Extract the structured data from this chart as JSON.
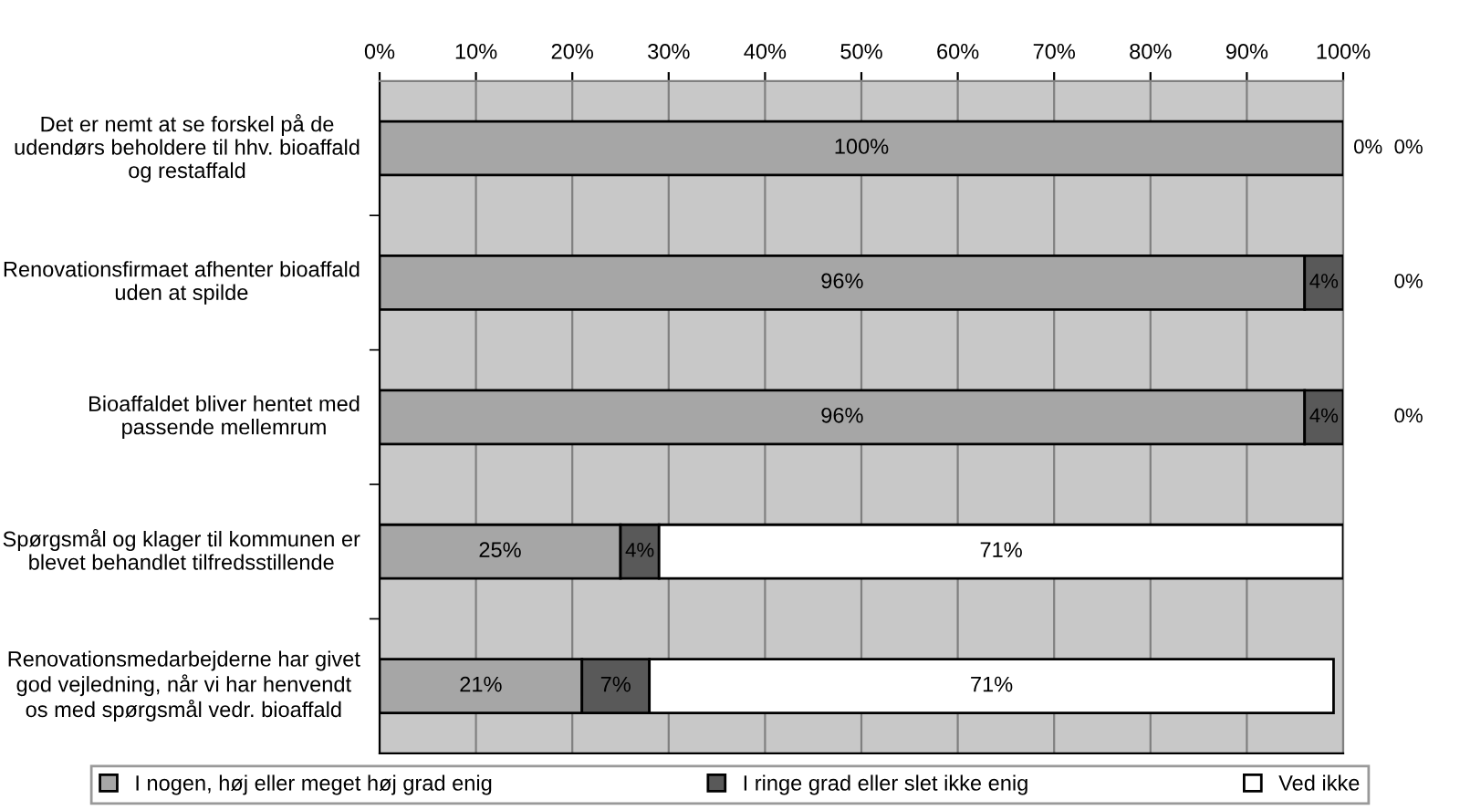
{
  "chart_data": {
    "type": "bar",
    "orientation": "horizontal",
    "stacked": true,
    "categories": [
      "Det er nemt at se forskel på de udendørs beholdere til hhv. bioaffald og restaffald",
      "Renovationsfirmaet afhenter bioaffald uden at spilde",
      "Bioaffaldet bliver hentet med passende mellemrum",
      "Spørgsmål og klager til kommunen er blevet behandlet tilfredsstillende",
      "Renovationsmedarbejderne har givet god vejledning, når vi har henvendt os med spørgsmål vedr. bioaffald"
    ],
    "series": [
      {
        "name": "I nogen, høj eller meget høj grad enig",
        "color": "#a6a6a6",
        "values": [
          100,
          96,
          96,
          25,
          21
        ],
        "value_labels": [
          "100%",
          "96%",
          "96%",
          "25%",
          "21%"
        ]
      },
      {
        "name": "I ringe grad eller slet ikke enig",
        "color": "#595959",
        "values": [
          0,
          4,
          4,
          4,
          7
        ],
        "value_labels": [
          "0%",
          "4%",
          "4%",
          "4%",
          "7%"
        ]
      },
      {
        "name": "Ved ikke",
        "color": "#ffffff",
        "values": [
          0,
          0,
          0,
          71,
          71
        ],
        "value_labels": [
          "0%",
          "0%",
          "0%",
          "71%",
          "71%"
        ]
      }
    ],
    "xlim": [
      0,
      100
    ],
    "xticks": [
      {
        "value": 0,
        "label": "0%"
      },
      {
        "value": 10,
        "label": "10%"
      },
      {
        "value": 20,
        "label": "20%"
      },
      {
        "value": 30,
        "label": "30%"
      },
      {
        "value": 40,
        "label": "40%"
      },
      {
        "value": 50,
        "label": "50%"
      },
      {
        "value": 60,
        "label": "60%"
      },
      {
        "value": 70,
        "label": "70%"
      },
      {
        "value": 80,
        "label": "80%"
      },
      {
        "value": 90,
        "label": "90%"
      },
      {
        "value": 100,
        "label": "100%"
      }
    ],
    "grid": "x",
    "legend": "bottom"
  }
}
